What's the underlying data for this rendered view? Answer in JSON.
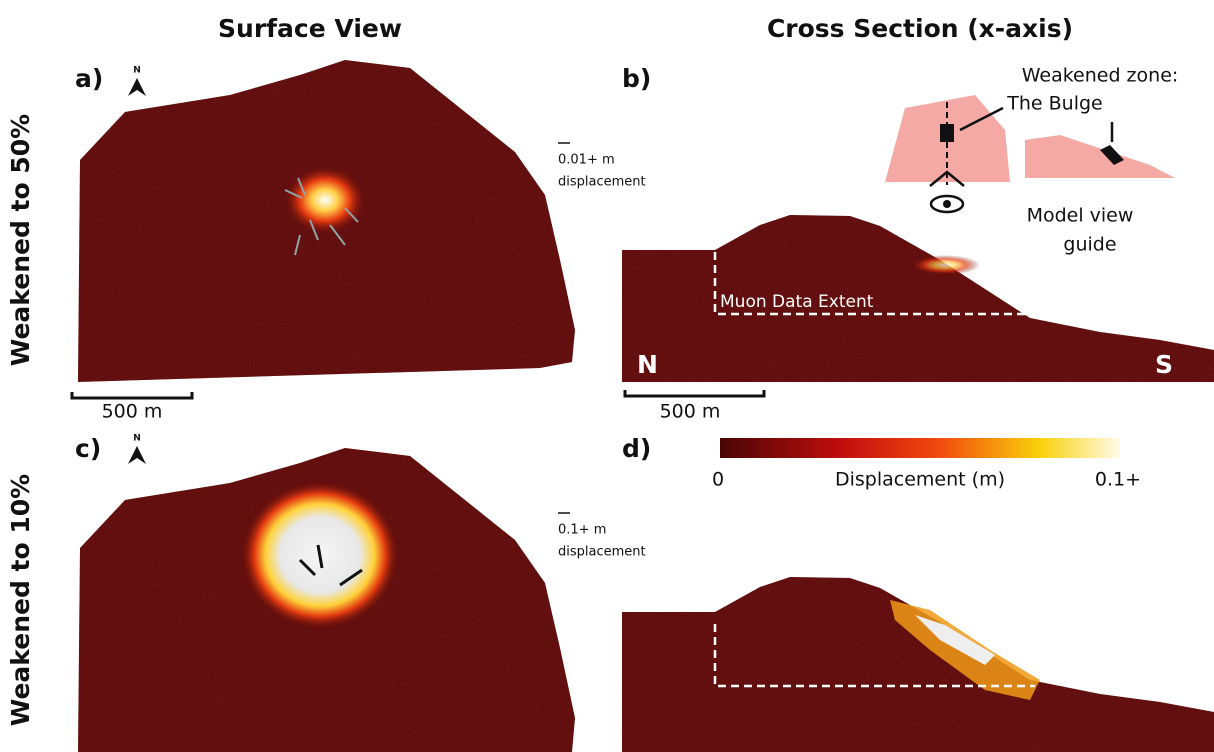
{
  "column_titles": [
    "Surface View",
    "Cross Section (x-axis)"
  ],
  "row_labels": [
    "Weakened to 50%",
    "Weakened to 10%"
  ],
  "panels": [
    {
      "label": "a)",
      "north": "N",
      "scale_bar": "500 m",
      "arrow_legend": [
        "0.01+ m",
        "displacement"
      ]
    },
    {
      "label": "b)",
      "scale_bar": "500 m",
      "muon_label": "Muon Data Extent",
      "left_end": "N",
      "right_end": "S"
    },
    {
      "label": "c)",
      "north": "N",
      "arrow_legend": [
        "0.1+ m",
        "displacement"
      ]
    },
    {
      "label": "d)"
    }
  ],
  "guide": {
    "zone_title": "Weakened zone:",
    "zone_name": "The Bulge",
    "caption": [
      "Model view",
      "guide"
    ]
  },
  "colorbar": {
    "title": "Displacement (m)",
    "min_label": "0",
    "max_label": "0.1+"
  }
}
